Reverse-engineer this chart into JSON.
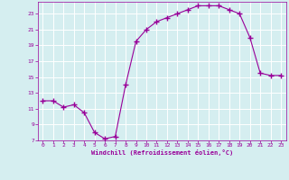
{
  "x": [
    0,
    1,
    2,
    3,
    4,
    5,
    6,
    7,
    8,
    9,
    10,
    11,
    12,
    13,
    14,
    15,
    16,
    17,
    18,
    19,
    20,
    21,
    22,
    23
  ],
  "y": [
    12,
    12,
    11.2,
    11.5,
    10.5,
    8,
    7.2,
    7.5,
    14,
    19.5,
    21,
    22,
    22.5,
    23,
    23.5,
    24,
    24,
    24,
    23.5,
    23,
    20,
    15.5,
    15.2,
    15.2
  ],
  "line_color": "#990099",
  "marker": "+",
  "marker_size": 4,
  "bg_color": "#d5eef0",
  "grid_color": "#b0d8dc",
  "xlabel": "Windchill (Refroidissement éolien,°C)",
  "xlabel_color": "#990099",
  "tick_color": "#990099",
  "label_color": "#990099",
  "ylim": [
    7,
    24.5
  ],
  "xlim": [
    -0.5,
    23.5
  ],
  "yticks": [
    7,
    9,
    11,
    13,
    15,
    17,
    19,
    21,
    23
  ],
  "xticks": [
    0,
    1,
    2,
    3,
    4,
    5,
    6,
    7,
    8,
    9,
    10,
    11,
    12,
    13,
    14,
    15,
    16,
    17,
    18,
    19,
    20,
    21,
    22,
    23
  ]
}
